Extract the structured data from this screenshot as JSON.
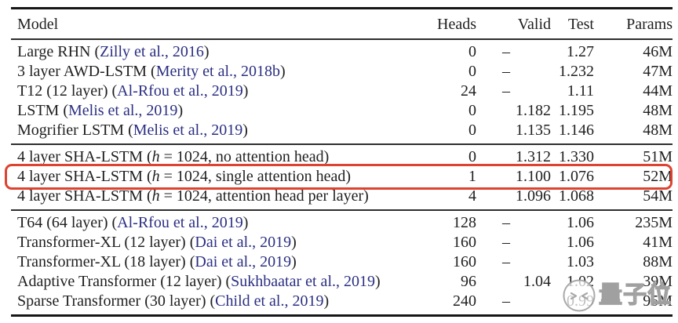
{
  "colors": {
    "text": "#1f1f1f",
    "cite": "#2b2f82",
    "rule": "#161616",
    "thin": "#2e2e2e",
    "hl": "#dc4330",
    "wmstroke": "#a0a0a0"
  },
  "table": {
    "columns": [
      "Model",
      "Heads",
      "Valid",
      "Test",
      "Params"
    ],
    "groups": [
      {
        "rows": [
          {
            "model": [
              {
                "t": "Large RHN ("
              },
              {
                "t": "Zilly et al., 2016",
                "cite": true
              },
              {
                "t": ")"
              }
            ],
            "heads": "0",
            "valid": "–",
            "test": "1.27",
            "params": "46M"
          },
          {
            "model": [
              {
                "t": "3 layer AWD-LSTM ("
              },
              {
                "t": "Merity et al., 2018b",
                "cite": true
              },
              {
                "t": ")"
              }
            ],
            "heads": "0",
            "valid": "–",
            "test": "1.232",
            "params": "47M"
          },
          {
            "model": [
              {
                "t": "T12 (12 layer) ("
              },
              {
                "t": "Al-Rfou et al., 2019",
                "cite": true
              },
              {
                "t": ")"
              }
            ],
            "heads": "24",
            "valid": "–",
            "test": "1.11",
            "params": "44M"
          },
          {
            "model": [
              {
                "t": "LSTM ("
              },
              {
                "t": "Melis et al., 2019",
                "cite": true
              },
              {
                "t": ")"
              }
            ],
            "heads": "0",
            "valid": "1.182",
            "test": "1.195",
            "params": "48M"
          },
          {
            "model": [
              {
                "t": "Mogrifier LSTM ("
              },
              {
                "t": "Melis et al., 2019",
                "cite": true
              },
              {
                "t": ")"
              }
            ],
            "heads": "0",
            "valid": "1.135",
            "test": "1.146",
            "params": "48M"
          }
        ]
      },
      {
        "rows": [
          {
            "model": [
              {
                "t": "4 layer SHA-LSTM ("
              },
              {
                "t": "h",
                "i": true
              },
              {
                "t": " = 1024, no attention head)"
              }
            ],
            "heads": "0",
            "valid": "1.312",
            "test": "1.330",
            "params": "51M"
          },
          {
            "model": [
              {
                "t": "4 layer SHA-LSTM ("
              },
              {
                "t": "h",
                "i": true
              },
              {
                "t": " = 1024, single attention head)"
              }
            ],
            "heads": "1",
            "valid": "1.100",
            "test": "1.076",
            "params": "52M",
            "highlight": true
          },
          {
            "model": [
              {
                "t": "4 layer SHA-LSTM ("
              },
              {
                "t": "h",
                "i": true
              },
              {
                "t": " = 1024, attention head per layer)"
              }
            ],
            "heads": "4",
            "valid": "1.096",
            "test": "1.068",
            "params": "54M"
          }
        ]
      },
      {
        "rows": [
          {
            "model": [
              {
                "t": "T64 (64 layer) ("
              },
              {
                "t": "Al-Rfou et al., 2019",
                "cite": true
              },
              {
                "t": ")"
              }
            ],
            "heads": "128",
            "valid": "–",
            "test": "1.06",
            "params": "235M"
          },
          {
            "model": [
              {
                "t": "Transformer-XL (12 layer) ("
              },
              {
                "t": "Dai et al., 2019",
                "cite": true
              },
              {
                "t": ")"
              }
            ],
            "heads": "160",
            "valid": "–",
            "test": "1.06",
            "params": "41M"
          },
          {
            "model": [
              {
                "t": "Transformer-XL (18 layer) ("
              },
              {
                "t": "Dai et al., 2019",
                "cite": true
              },
              {
                "t": ")"
              }
            ],
            "heads": "160",
            "valid": "–",
            "test": "1.03",
            "params": "88M"
          },
          {
            "model": [
              {
                "t": "Adaptive Transformer (12 layer) ("
              },
              {
                "t": "Sukhbaatar et al., 2019",
                "cite": true
              },
              {
                "t": ")"
              }
            ],
            "heads": "96",
            "valid": "1.04",
            "test": "1.02",
            "params": "39M"
          },
          {
            "model": [
              {
                "t": "Sparse Transformer (30 layer) ("
              },
              {
                "t": "Child et al., 2019",
                "cite": true
              },
              {
                "t": ")"
              }
            ],
            "heads": "240",
            "valid": "–",
            "test": "0.99",
            "params": "95M"
          }
        ]
      }
    ]
  },
  "watermark": {
    "text": "量子位",
    "logo": "qbitai-winking-face-logo"
  }
}
